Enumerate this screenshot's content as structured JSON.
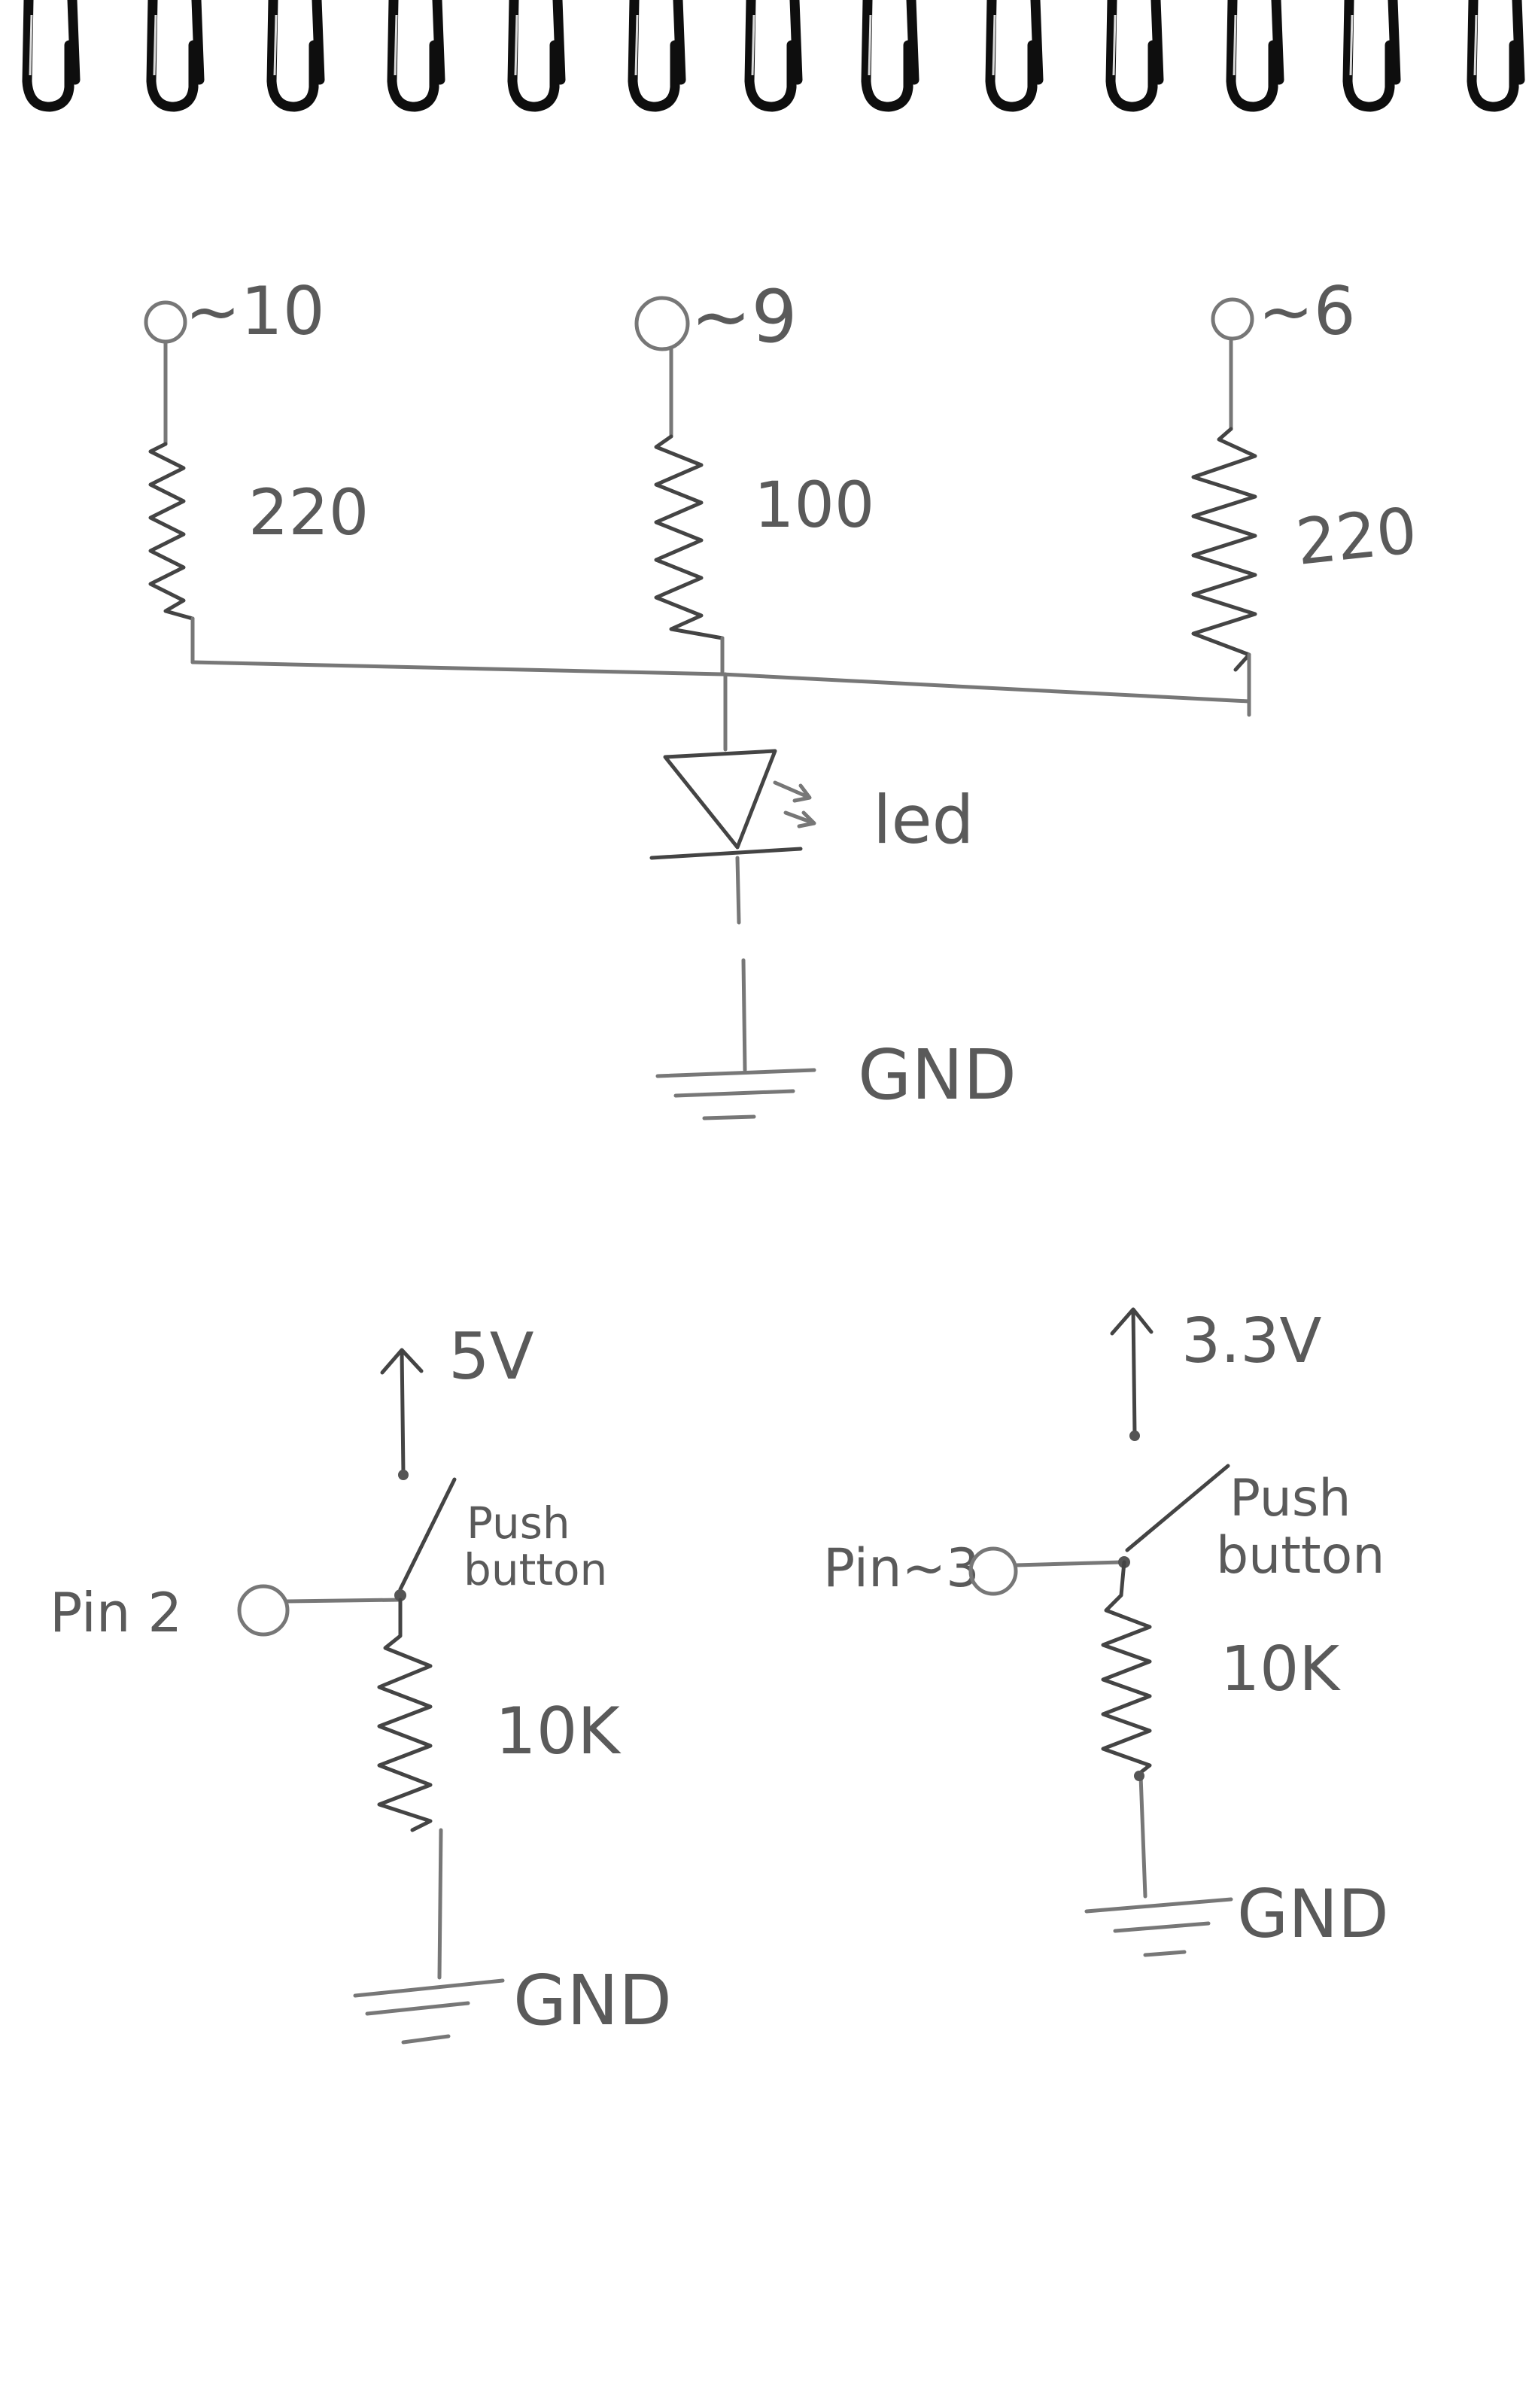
{
  "colors": {
    "paper": "#ffffff",
    "pencil": "#777777",
    "pencil_dark": "#444444",
    "binding": "#0e0e0e"
  },
  "circuit_led": {
    "pin_a": "~10",
    "pin_b": "~9",
    "pin_c": "~6",
    "res_a": "220",
    "res_b": "100",
    "res_c": "220",
    "led": "led",
    "gnd": "GND"
  },
  "circuit_button_5v": {
    "supply": "5V",
    "pin": "Pin 2",
    "switch_line1": "Push",
    "switch_line2": "button",
    "resistor": "10K",
    "gnd": "GND"
  },
  "circuit_button_3v3": {
    "supply": "3.3V",
    "pin": "Pin~3",
    "switch_line1": "Push",
    "switch_line2": "button",
    "resistor": "10K",
    "gnd": "GND"
  }
}
